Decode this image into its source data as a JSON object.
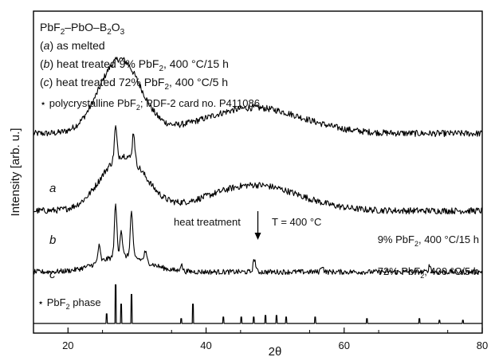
{
  "chart_data": {
    "type": "line",
    "xlabel": "2θ",
    "ylabel": "Intensity [arb. u.]",
    "xlim": [
      15,
      80
    ],
    "xticks": [
      20,
      40,
      60,
      80
    ],
    "y_ticks_shown": false,
    "grid": false,
    "legend_placement": "top-left",
    "legend_title": "PbF₂–PbO–B₂O₃",
    "legend_items": [
      {
        "tag": "(a)",
        "text": "as melted"
      },
      {
        "tag": "(b)",
        "text": "heat treated  9% PbF₂, 400 °C/15 h"
      },
      {
        "tag": "(c)",
        "text": "heat treated  72% PbF₂, 400 °C/5 h"
      }
    ],
    "reference_note": "⋆ polycrystalline PbF₂; PDF-2 card no. P411086",
    "annotation": {
      "text": "heat treatment",
      "temperature": "T = 400 °C",
      "arrow_x": 47.5
    },
    "series": [
      {
        "name": "a",
        "baseline": 0.62,
        "humps": [
          {
            "center": 27.5,
            "height": 0.23,
            "width": 3.0
          },
          {
            "center": 47.0,
            "height": 0.08,
            "width": 7.0
          }
        ],
        "tail": [
          15,
          0.6,
          80,
          0.6
        ],
        "peaks": [],
        "noise": 0.01
      },
      {
        "name": "b",
        "baseline": 0.38,
        "right_label": "9% PbF₂, 400 °C/15 h",
        "humps": [
          {
            "center": 28.0,
            "height": 0.17,
            "width": 3.2
          },
          {
            "center": 47.0,
            "height": 0.08,
            "width": 6.5
          }
        ],
        "peaks": [
          {
            "x": 26.9,
            "h": 0.1
          },
          {
            "x": 29.5,
            "h": 0.09
          }
        ],
        "noise": 0.01
      },
      {
        "name": "c",
        "baseline": 0.19,
        "right_label": "72% PbF₂, 400 °C/5 h",
        "humps": [
          {
            "center": 28.0,
            "height": 0.05,
            "width": 3.5
          }
        ],
        "peaks": [
          {
            "x": 24.5,
            "h": 0.05
          },
          {
            "x": 26.9,
            "h": 0.16
          },
          {
            "x": 27.7,
            "h": 0.08
          },
          {
            "x": 29.2,
            "h": 0.14
          },
          {
            "x": 31.2,
            "h": 0.03
          },
          {
            "x": 36.4,
            "h": 0.02
          },
          {
            "x": 47.0,
            "h": 0.04
          },
          {
            "x": 56.8,
            "h": 0.02
          },
          {
            "x": 72.4,
            "h": 0.02
          }
        ],
        "noise": 0.008
      },
      {
        "name": "PbF₂ phase",
        "label": "PbF₂ phase",
        "baseline": 0.03,
        "sticks": [
          {
            "x": 25.6,
            "h": 0.03
          },
          {
            "x": 26.9,
            "h": 0.12
          },
          {
            "x": 27.7,
            "h": 0.06
          },
          {
            "x": 29.2,
            "h": 0.09
          },
          {
            "x": 36.4,
            "h": 0.015
          },
          {
            "x": 38.1,
            "h": 0.06
          },
          {
            "x": 42.5,
            "h": 0.02
          },
          {
            "x": 45.1,
            "h": 0.02
          },
          {
            "x": 46.9,
            "h": 0.02
          },
          {
            "x": 48.6,
            "h": 0.025
          },
          {
            "x": 50.2,
            "h": 0.025
          },
          {
            "x": 51.6,
            "h": 0.02
          },
          {
            "x": 55.8,
            "h": 0.02
          },
          {
            "x": 63.3,
            "h": 0.015
          },
          {
            "x": 70.9,
            "h": 0.015
          },
          {
            "x": 73.8,
            "h": 0.01
          },
          {
            "x": 77.2,
            "h": 0.01
          }
        ]
      }
    ]
  }
}
